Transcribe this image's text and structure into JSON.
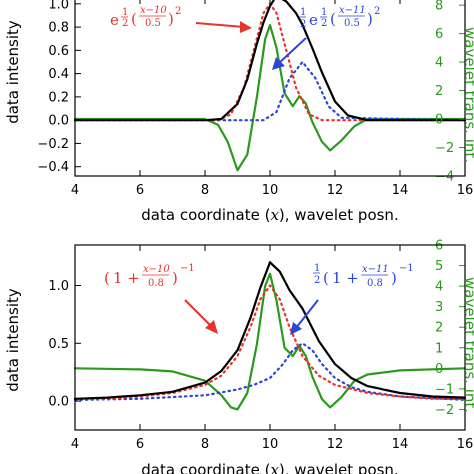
{
  "colors": {
    "total": "#000000",
    "lorentzian_a": "#e8322d",
    "lorentzian_b": "#2c46d6",
    "wavelet": "#2a9a1c",
    "axes": "#000000"
  },
  "chart_data": [
    {
      "type": "line",
      "xlim": [
        4,
        16
      ],
      "ylim": [
        -0.48,
        1.05
      ],
      "y2lim": [
        -4,
        8.5
      ],
      "xlabel": "data coordinate (x), wavelet posn.",
      "ylabel": "data intensity",
      "y2label": "wavelet trans. int.",
      "x_ticks": [
        "4",
        "6",
        "8",
        "10",
        "12",
        "14",
        "16"
      ],
      "y_ticks": [
        "−0.4",
        "−0.2",
        "0.0",
        "0.2",
        "0.4",
        "0.6",
        "0.8",
        "1.0"
      ],
      "y2_ticks": [
        "−4",
        "−2",
        "0",
        "2",
        "4",
        "6",
        "8"
      ],
      "series": [
        {
          "role": "total",
          "color": "#000000",
          "style": "solid",
          "x": [
            4,
            8.0,
            8.5,
            9.0,
            9.3,
            9.6,
            9.8,
            10.0,
            10.2,
            10.5,
            10.8,
            11.0,
            11.3,
            11.6,
            12.0,
            12.4,
            13.0,
            16
          ],
          "y": [
            0,
            0.0,
            0.01,
            0.14,
            0.35,
            0.66,
            0.84,
            0.98,
            1.07,
            1.02,
            0.92,
            0.82,
            0.62,
            0.41,
            0.16,
            0.04,
            0.0,
            0
          ]
        },
        {
          "role": "gaussian_a",
          "color": "#e8322d",
          "style": "dotted",
          "x": [
            4,
            8.4,
            8.8,
            9.2,
            9.5,
            9.8,
            10.0,
            10.2,
            10.5,
            10.8,
            11.2,
            11.6,
            16
          ],
          "y": [
            0,
            0.0,
            0.05,
            0.28,
            0.6,
            0.92,
            1.0,
            0.92,
            0.6,
            0.28,
            0.05,
            0.0,
            0
          ]
        },
        {
          "role": "gaussian_b",
          "color": "#2c46d6",
          "style": "dotted",
          "x": [
            4,
            9.8,
            10.2,
            10.6,
            11.0,
            11.4,
            11.8,
            12.2,
            16
          ],
          "y": [
            0,
            0.0,
            0.07,
            0.36,
            0.5,
            0.36,
            0.12,
            0.02,
            0
          ]
        },
        {
          "role": "wavelet",
          "color": "#2a9a1c",
          "style": "solid",
          "axis": "right",
          "x": [
            4,
            8.0,
            8.4,
            8.7,
            9.0,
            9.3,
            9.6,
            9.85,
            10.0,
            10.2,
            10.45,
            10.7,
            10.9,
            11.1,
            11.3,
            11.6,
            11.85,
            12.2,
            12.6,
            13.0,
            16
          ],
          "y": [
            0,
            0.0,
            -0.4,
            -1.6,
            -3.6,
            -2.5,
            1.6,
            5.6,
            6.6,
            5.0,
            1.8,
            0.9,
            1.6,
            1.1,
            -0.2,
            -1.6,
            -2.2,
            -1.5,
            -0.5,
            0.0,
            0
          ]
        }
      ],
      "annotations": [
        {
          "target": "gaussian_a",
          "color": "#e8322d",
          "text": "e^{1/2((x−10)/0.5)^2}"
        },
        {
          "target": "gaussian_b",
          "color": "#2c46d6",
          "text": "1/2 e^{1/2((x−11)/0.5)^2}"
        }
      ]
    },
    {
      "type": "line",
      "xlim": [
        4,
        16
      ],
      "ylim": [
        -0.25,
        1.35
      ],
      "y2lim": [
        -3,
        6
      ],
      "xlabel": "data coordinate (x), wavelet posn.",
      "ylabel": "data intensity",
      "y2label": "wavelet trans. int.",
      "x_ticks": [
        "4",
        "6",
        "8",
        "10",
        "12",
        "14",
        "16"
      ],
      "y_ticks": [
        "0.0",
        "0.5",
        "1.0"
      ],
      "y2_ticks": [
        "−2",
        "−1",
        "0",
        "1",
        "2",
        "3",
        "4",
        "5",
        "6"
      ],
      "series": [
        {
          "role": "total",
          "color": "#000000",
          "style": "solid",
          "x": [
            4,
            5,
            6,
            7,
            8,
            8.5,
            9.0,
            9.4,
            9.7,
            10.0,
            10.3,
            10.6,
            11.0,
            11.5,
            12.0,
            12.5,
            13,
            14,
            15,
            16
          ],
          "y": [
            0.02,
            0.03,
            0.05,
            0.08,
            0.16,
            0.26,
            0.44,
            0.72,
            0.98,
            1.2,
            1.12,
            0.96,
            0.8,
            0.52,
            0.32,
            0.2,
            0.13,
            0.07,
            0.04,
            0.03
          ]
        },
        {
          "role": "lorentzian_a",
          "color": "#e8322d",
          "style": "dotted",
          "x": [
            4,
            5,
            6,
            7,
            8,
            8.5,
            9.0,
            9.4,
            9.7,
            10.0,
            10.3,
            10.6,
            11.0,
            11.5,
            12,
            13,
            14,
            15,
            16
          ],
          "y": [
            0.02,
            0.02,
            0.04,
            0.07,
            0.14,
            0.22,
            0.39,
            0.64,
            0.88,
            1.0,
            0.88,
            0.64,
            0.39,
            0.22,
            0.14,
            0.07,
            0.04,
            0.02,
            0.02
          ]
        },
        {
          "role": "lorentzian_b",
          "color": "#2c46d6",
          "style": "dotted",
          "x": [
            4,
            6,
            8,
            9,
            9.5,
            10,
            10.4,
            10.7,
            11.0,
            11.3,
            11.6,
            12.0,
            12.5,
            13,
            14,
            16
          ],
          "y": [
            0.01,
            0.02,
            0.05,
            0.1,
            0.14,
            0.2,
            0.32,
            0.44,
            0.5,
            0.44,
            0.32,
            0.2,
            0.12,
            0.08,
            0.04,
            0.01
          ]
        },
        {
          "role": "wavelet",
          "color": "#2a9a1c",
          "style": "solid",
          "axis": "right",
          "x": [
            4,
            6,
            7,
            8,
            8.5,
            8.8,
            9.0,
            9.3,
            9.6,
            9.85,
            10.0,
            10.2,
            10.45,
            10.7,
            10.9,
            11.1,
            11.3,
            11.6,
            11.85,
            12.2,
            12.6,
            13,
            14,
            16
          ],
          "y": [
            0,
            -0.05,
            -0.15,
            -0.6,
            -1.3,
            -1.9,
            -2.0,
            -1.2,
            1.2,
            4.0,
            4.6,
            3.3,
            1.0,
            0.6,
            1.1,
            0.6,
            -0.4,
            -1.5,
            -1.9,
            -1.4,
            -0.6,
            -0.3,
            -0.1,
            0
          ]
        }
      ],
      "annotations": [
        {
          "target": "lorentzian_a",
          "color": "#e8322d",
          "text": "(1+(x−10)/0.8)^−1"
        },
        {
          "target": "lorentzian_b",
          "color": "#2c46d6",
          "text": "1/2(1+(x−11)/0.8)^−1"
        }
      ]
    }
  ]
}
